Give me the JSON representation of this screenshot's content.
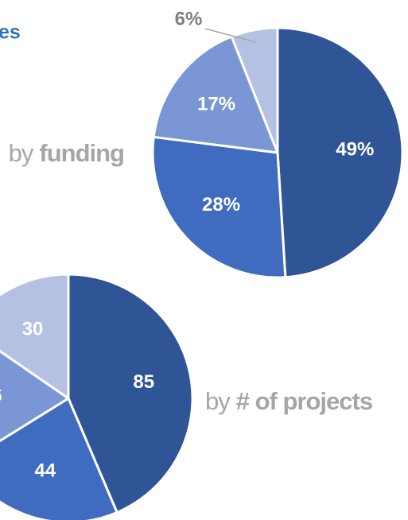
{
  "title": "es",
  "chart_data": [
    {
      "type": "pie",
      "caption": "by",
      "caption_bold": "funding",
      "values": [
        49,
        28,
        17,
        6
      ],
      "value_labels": [
        "49%",
        "28%",
        "17%",
        "6%"
      ],
      "colors": [
        "#2f5597",
        "#3f6cbf",
        "#7b96d4",
        "#b4c1e3"
      ]
    },
    {
      "type": "pie",
      "caption": "by",
      "caption_bold": "# of projects",
      "values": [
        85,
        44,
        36,
        30
      ],
      "colors": [
        "#2f5597",
        "#3f6cbf",
        "#7b96d4",
        "#b4c1e3"
      ]
    }
  ]
}
